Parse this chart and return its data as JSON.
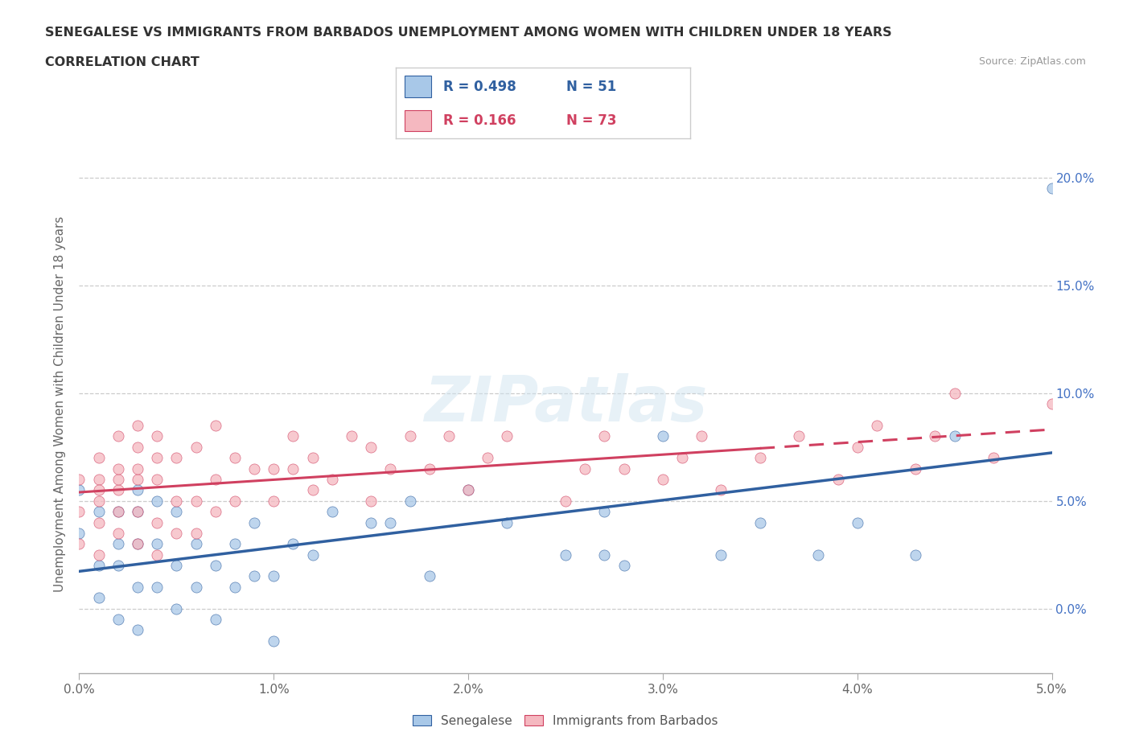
{
  "title": "SENEGALESE VS IMMIGRANTS FROM BARBADOS UNEMPLOYMENT AMONG WOMEN WITH CHILDREN UNDER 18 YEARS",
  "subtitle": "CORRELATION CHART",
  "source": "Source: ZipAtlas.com",
  "ylabel": "Unemployment Among Women with Children Under 18 years",
  "xlim": [
    0.0,
    0.05
  ],
  "ylim": [
    -0.03,
    0.22
  ],
  "yticks": [
    0.0,
    0.05,
    0.1,
    0.15,
    0.2
  ],
  "xticks": [
    0.0,
    0.01,
    0.02,
    0.03,
    0.04,
    0.05
  ],
  "color_blue": "#a8c8e8",
  "color_pink": "#f5b8c0",
  "color_blue_line": "#3060a0",
  "color_pink_line": "#d04060",
  "senegalese_x": [
    0.0,
    0.0,
    0.001,
    0.001,
    0.001,
    0.002,
    0.002,
    0.002,
    0.002,
    0.003,
    0.003,
    0.003,
    0.003,
    0.003,
    0.004,
    0.004,
    0.004,
    0.005,
    0.005,
    0.005,
    0.006,
    0.006,
    0.007,
    0.007,
    0.008,
    0.008,
    0.009,
    0.009,
    0.01,
    0.01,
    0.011,
    0.012,
    0.013,
    0.015,
    0.016,
    0.017,
    0.018,
    0.02,
    0.022,
    0.025,
    0.027,
    0.027,
    0.028,
    0.03,
    0.033,
    0.035,
    0.038,
    0.04,
    0.043,
    0.045,
    0.05
  ],
  "senegalese_y": [
    0.035,
    0.055,
    0.005,
    0.02,
    0.045,
    -0.005,
    0.02,
    0.03,
    0.045,
    -0.01,
    0.01,
    0.03,
    0.045,
    0.055,
    0.01,
    0.03,
    0.05,
    0.0,
    0.02,
    0.045,
    0.01,
    0.03,
    -0.005,
    0.02,
    0.01,
    0.03,
    0.015,
    0.04,
    -0.015,
    0.015,
    0.03,
    0.025,
    0.045,
    0.04,
    0.04,
    0.05,
    0.015,
    0.055,
    0.04,
    0.025,
    0.025,
    0.045,
    0.02,
    0.08,
    0.025,
    0.04,
    0.025,
    0.04,
    0.025,
    0.08,
    0.195
  ],
  "barbados_x": [
    0.0,
    0.0,
    0.0,
    0.001,
    0.001,
    0.001,
    0.001,
    0.001,
    0.001,
    0.002,
    0.002,
    0.002,
    0.002,
    0.002,
    0.002,
    0.003,
    0.003,
    0.003,
    0.003,
    0.003,
    0.003,
    0.004,
    0.004,
    0.004,
    0.004,
    0.004,
    0.005,
    0.005,
    0.005,
    0.006,
    0.006,
    0.006,
    0.007,
    0.007,
    0.007,
    0.008,
    0.008,
    0.009,
    0.01,
    0.01,
    0.011,
    0.011,
    0.012,
    0.012,
    0.013,
    0.014,
    0.015,
    0.015,
    0.016,
    0.017,
    0.018,
    0.019,
    0.02,
    0.021,
    0.022,
    0.025,
    0.026,
    0.027,
    0.028,
    0.03,
    0.031,
    0.032,
    0.033,
    0.035,
    0.037,
    0.039,
    0.04,
    0.041,
    0.043,
    0.044,
    0.045,
    0.047,
    0.05
  ],
  "barbados_y": [
    0.03,
    0.045,
    0.06,
    0.025,
    0.04,
    0.05,
    0.06,
    0.055,
    0.07,
    0.035,
    0.045,
    0.055,
    0.06,
    0.065,
    0.08,
    0.03,
    0.045,
    0.06,
    0.065,
    0.075,
    0.085,
    0.025,
    0.04,
    0.06,
    0.07,
    0.08,
    0.035,
    0.05,
    0.07,
    0.035,
    0.05,
    0.075,
    0.045,
    0.06,
    0.085,
    0.05,
    0.07,
    0.065,
    0.05,
    0.065,
    0.065,
    0.08,
    0.055,
    0.07,
    0.06,
    0.08,
    0.05,
    0.075,
    0.065,
    0.08,
    0.065,
    0.08,
    0.055,
    0.07,
    0.08,
    0.05,
    0.065,
    0.08,
    0.065,
    0.06,
    0.07,
    0.08,
    0.055,
    0.07,
    0.08,
    0.06,
    0.075,
    0.085,
    0.065,
    0.08,
    0.1,
    0.07,
    0.095
  ]
}
